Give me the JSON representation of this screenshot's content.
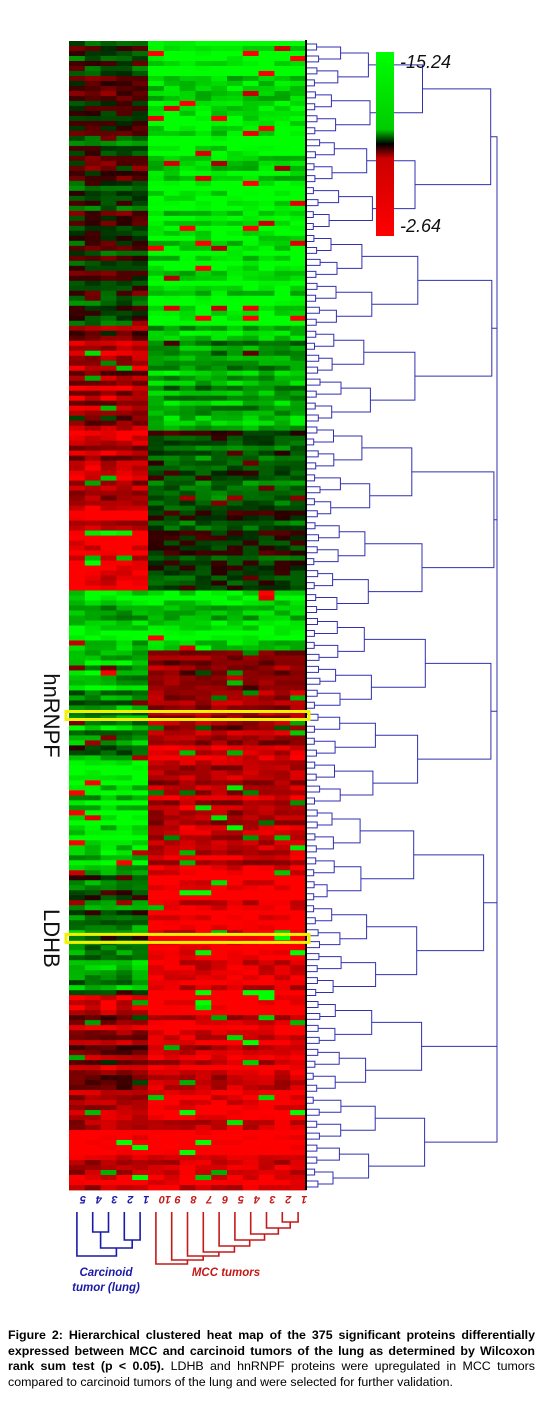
{
  "chart_data": {
    "type": "heatmap",
    "title": "",
    "legend": {
      "max_label": "-15.24",
      "min_label": "-2.64",
      "top_color": "#00ff00",
      "middle_color": "#000000",
      "bottom_color": "#ff0000"
    },
    "rows_count": 375,
    "columns": [
      {
        "label": "5",
        "group": "carcinoid"
      },
      {
        "label": "4",
        "group": "carcinoid"
      },
      {
        "label": "3",
        "group": "carcinoid"
      },
      {
        "label": "2",
        "group": "carcinoid"
      },
      {
        "label": "1",
        "group": "carcinoid"
      },
      {
        "label": "10",
        "group": "mcc"
      },
      {
        "label": "9",
        "group": "mcc"
      },
      {
        "label": "8",
        "group": "mcc"
      },
      {
        "label": "7",
        "group": "mcc"
      },
      {
        "label": "6",
        "group": "mcc"
      },
      {
        "label": "5",
        "group": "mcc"
      },
      {
        "label": "4",
        "group": "mcc"
      },
      {
        "label": "3",
        "group": "mcc"
      },
      {
        "label": "2",
        "group": "mcc"
      },
      {
        "label": "1",
        "group": "mcc"
      }
    ],
    "groups": [
      {
        "id": "carcinoid",
        "label_line1": "Carcinoid",
        "label_line2": "tumor (lung)",
        "color": "#1a1aa8"
      },
      {
        "id": "mcc",
        "label": "MCC tumors",
        "color": "#c41a1a"
      }
    ],
    "highlighted_rows": [
      {
        "label": "hnRNPF",
        "row_fraction": 0.587
      },
      {
        "label": "LDHB",
        "row_fraction": 0.781
      }
    ],
    "highlight_color": "#f2f200",
    "dendrogram_color": "#3030b0",
    "blocks": [
      {
        "row_start": 0.0,
        "row_end": 0.25,
        "carcinoid_level": 0.05,
        "mcc_level": 0.97
      },
      {
        "row_start": 0.25,
        "row_end": 0.34,
        "carcinoid_level": -0.55,
        "mcc_level": 0.6
      },
      {
        "row_start": 0.34,
        "row_end": 0.44,
        "carcinoid_level": -0.75,
        "mcc_level": 0.2
      },
      {
        "row_start": 0.44,
        "row_end": 0.48,
        "carcinoid_level": -0.95,
        "mcc_level": 0.1
      },
      {
        "row_start": 0.48,
        "row_end": 0.53,
        "carcinoid_level": 0.8,
        "mcc_level": 0.85
      },
      {
        "row_start": 0.53,
        "row_end": 0.62,
        "carcinoid_level": 0.5,
        "mcc_level": -0.55
      },
      {
        "row_start": 0.62,
        "row_end": 0.72,
        "carcinoid_level": 0.9,
        "mcc_level": -0.7
      },
      {
        "row_start": 0.72,
        "row_end": 0.83,
        "carcinoid_level": 0.45,
        "mcc_level": -0.97
      },
      {
        "row_start": 0.83,
        "row_end": 0.94,
        "carcinoid_level": -0.5,
        "mcc_level": -0.85
      },
      {
        "row_start": 0.94,
        "row_end": 1.0,
        "carcinoid_level": -0.92,
        "mcc_level": -0.97
      }
    ]
  },
  "caption": {
    "bold": "Figure 2: Hierarchical clustered heat map of the 375 significant proteins differentially expressed between MCC and carcinoid tumors of the lung as determined by Wilcoxon rank sum test (p < 0.05).",
    "normal": " LDHB and hnRNPF proteins were upregulated in MCC tumors compared to carcinoid tumors of the lung and were selected for further validation."
  }
}
